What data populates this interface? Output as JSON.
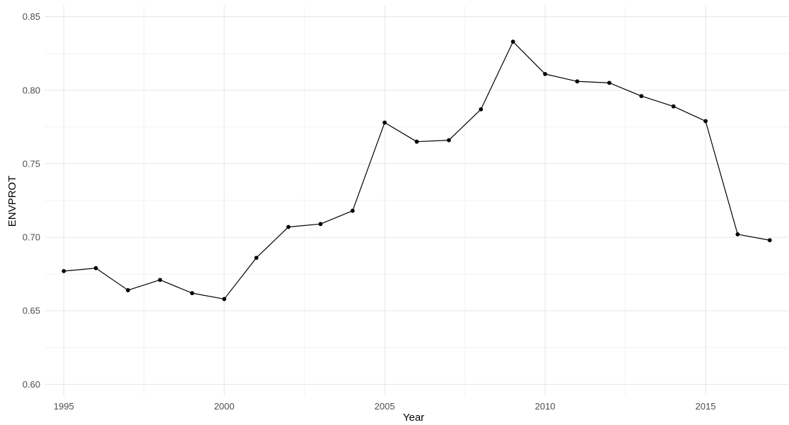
{
  "chart_data": {
    "type": "line",
    "xlabel": "Year",
    "ylabel": "ENVPROT",
    "xlim": [
      1994.4,
      2017.6
    ],
    "ylim": [
      0.5925,
      0.8575
    ],
    "x_ticks": [
      1995,
      2000,
      2005,
      2010,
      2015
    ],
    "x_tick_labels": [
      "1995",
      "2000",
      "2005",
      "2010",
      "2015"
    ],
    "y_ticks": [
      0.6,
      0.65,
      0.7,
      0.75,
      0.8,
      0.85
    ],
    "y_tick_labels": [
      "0.60",
      "0.65",
      "0.70",
      "0.75",
      "0.80",
      "0.85"
    ],
    "grid": true,
    "series": [
      {
        "x": [
          1995,
          1996,
          1997,
          1998,
          1999,
          2000,
          2001,
          2002,
          2003,
          2004,
          2005,
          2006,
          2007,
          2008,
          2009,
          2010,
          2011,
          2012,
          2013,
          2014,
          2015,
          2016,
          2017
        ],
        "y": [
          0.677,
          0.679,
          0.664,
          0.671,
          0.662,
          0.658,
          0.686,
          0.707,
          0.709,
          0.718,
          0.778,
          0.765,
          0.766,
          0.787,
          0.833,
          0.811,
          0.806,
          0.805,
          0.796,
          0.789,
          0.779,
          0.702,
          0.698
        ]
      }
    ],
    "colors": {
      "line": "#000000",
      "point": "#000000",
      "grid_major": "#e6e6e6",
      "grid_minor": "#f2f2f2",
      "tick_text": "#4d4d4d",
      "title_text": "#000000"
    }
  }
}
